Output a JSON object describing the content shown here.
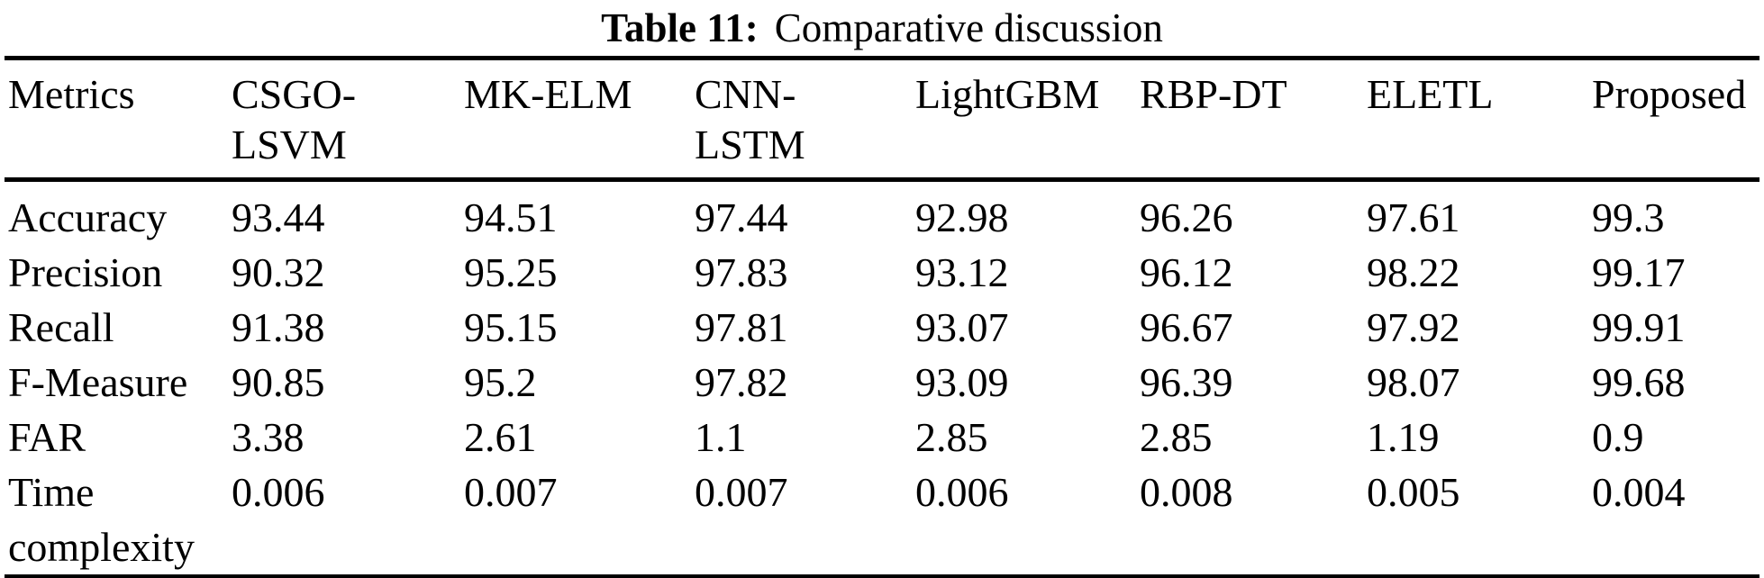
{
  "page": {
    "background": "#ffffff",
    "text_color": "#000000"
  },
  "caption": {
    "label": "Table 11:",
    "title": "Comparative discussion"
  },
  "table": {
    "headers": [
      {
        "l1": "Metrics",
        "l2": ""
      },
      {
        "l1": "CSGO-",
        "l2": "LSVM"
      },
      {
        "l1": "MK-ELM",
        "l2": ""
      },
      {
        "l1": "CNN-",
        "l2": "LSTM"
      },
      {
        "l1": "LightGBM",
        "l2": ""
      },
      {
        "l1": "RBP-DT",
        "l2": ""
      },
      {
        "l1": "ELETL",
        "l2": ""
      },
      {
        "l1": "Proposed",
        "l2": ""
      }
    ],
    "rows": [
      {
        "metric_l1": "Accuracy",
        "metric_l2": "",
        "values": [
          "93.44",
          "94.51",
          "97.44",
          "92.98",
          "96.26",
          "97.61",
          "99.3"
        ]
      },
      {
        "metric_l1": "Precision",
        "metric_l2": "",
        "values": [
          "90.32",
          "95.25",
          "97.83",
          "93.12",
          "96.12",
          "98.22",
          "99.17"
        ]
      },
      {
        "metric_l1": "Recall",
        "metric_l2": "",
        "values": [
          "91.38",
          "95.15",
          "97.81",
          "93.07",
          "96.67",
          "97.92",
          "99.91"
        ]
      },
      {
        "metric_l1": "F-Measure",
        "metric_l2": "",
        "values": [
          "90.85",
          "95.2",
          "97.82",
          "93.09",
          "96.39",
          "98.07",
          "99.68"
        ]
      },
      {
        "metric_l1": "FAR",
        "metric_l2": "",
        "values": [
          "3.38",
          "2.61",
          "1.1",
          "2.85",
          "2.85",
          "1.19",
          "0.9"
        ]
      },
      {
        "metric_l1": "Time",
        "metric_l2": "complexity",
        "values": [
          "0.006",
          "0.007",
          "0.007",
          "0.006",
          "0.008",
          "0.005",
          "0.004"
        ]
      }
    ]
  }
}
